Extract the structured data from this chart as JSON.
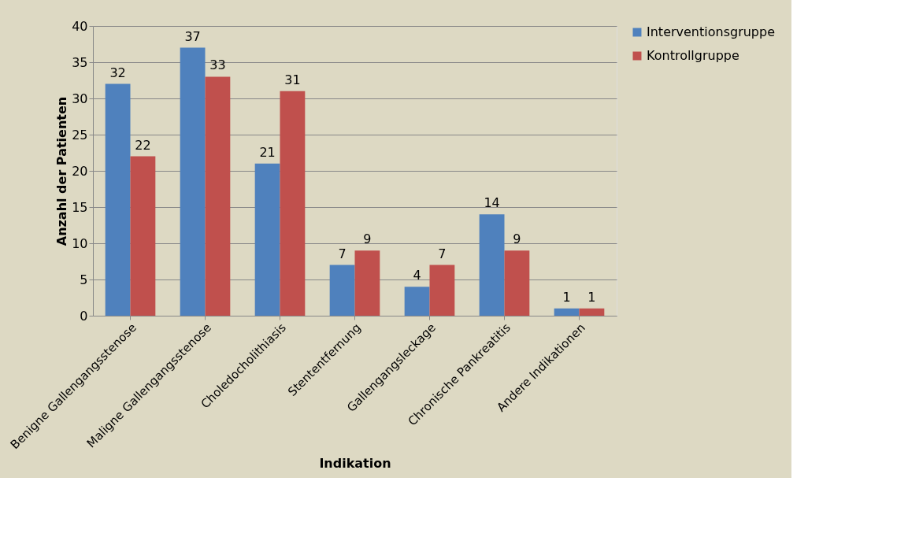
{
  "chart_data": {
    "type": "bar",
    "xlabel": "Indikation",
    "ylabel": "Anzahl der Patienten",
    "categories": [
      "Benigne Gallengangsstenose",
      "Maligne Gallengangsstenose",
      "Choledocholithiasis",
      "Stententfernung",
      "Gallengangsleckage",
      "Chronische Pankreatitis",
      "Andere Indikationen"
    ],
    "series": [
      {
        "name": "Interventionsgruppe",
        "color": "#4f81bd",
        "values": [
          32,
          37,
          21,
          7,
          4,
          14,
          1
        ]
      },
      {
        "name": "Kontrollgruppe",
        "color": "#c0504d",
        "values": [
          22,
          33,
          31,
          9,
          7,
          9,
          1
        ]
      }
    ],
    "ylim": [
      0,
      40
    ],
    "yticks": [
      0,
      5,
      10,
      15,
      20,
      25,
      30,
      35,
      40
    ],
    "grid": "y",
    "legend": "right",
    "data_labels": true
  }
}
